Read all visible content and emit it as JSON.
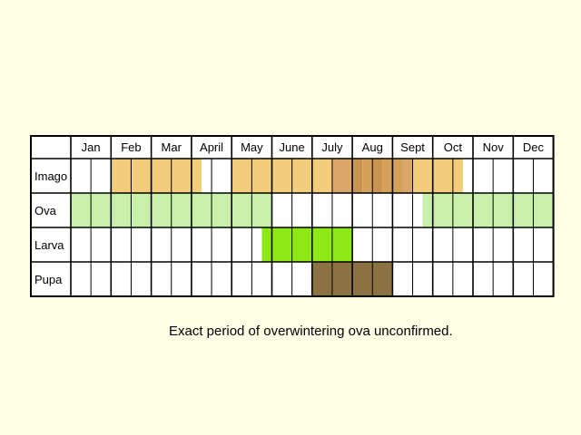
{
  "chart_data": {
    "type": "table",
    "months": [
      "Jan",
      "Feb",
      "Mar",
      "April",
      "May",
      "June",
      "July",
      "Aug",
      "Sept",
      "Oct",
      "Nov",
      "Dec"
    ],
    "half_cells_per_month": 2,
    "stages": [
      {
        "name": "Imago",
        "segments": [
          {
            "start": 1.0,
            "end": 3.25,
            "color": "#f3cc7c"
          },
          {
            "start": 4.0,
            "end": 6.5,
            "color": "#f3cc7c"
          },
          {
            "start": 6.5,
            "end": 7.0,
            "color": "#dba768"
          },
          {
            "start": 7.0,
            "end": 7.25,
            "color": "#c99350"
          },
          {
            "start": 7.25,
            "end": 7.5,
            "color": "#d3a059"
          },
          {
            "start": 7.5,
            "end": 7.75,
            "color": "#c99350"
          },
          {
            "start": 7.75,
            "end": 8.25,
            "color": "#d3a059"
          },
          {
            "start": 8.25,
            "end": 8.5,
            "color": "#dba768"
          },
          {
            "start": 8.5,
            "end": 9.75,
            "color": "#f3cc7c"
          }
        ]
      },
      {
        "name": "Ova",
        "segments": [
          {
            "start": 0.0,
            "end": 5.0,
            "color": "#c8f0a8"
          },
          {
            "start": 8.75,
            "end": 12.0,
            "color": "#c8f0a8"
          }
        ]
      },
      {
        "name": "Larva",
        "segments": [
          {
            "start": 4.75,
            "end": 7.0,
            "color": "#8ee816"
          }
        ]
      },
      {
        "name": "Pupa",
        "segments": [
          {
            "start": 6.0,
            "end": 8.0,
            "color": "#8c7242"
          }
        ]
      }
    ]
  },
  "note": "Exact period of overwintering ova unconfirmed."
}
